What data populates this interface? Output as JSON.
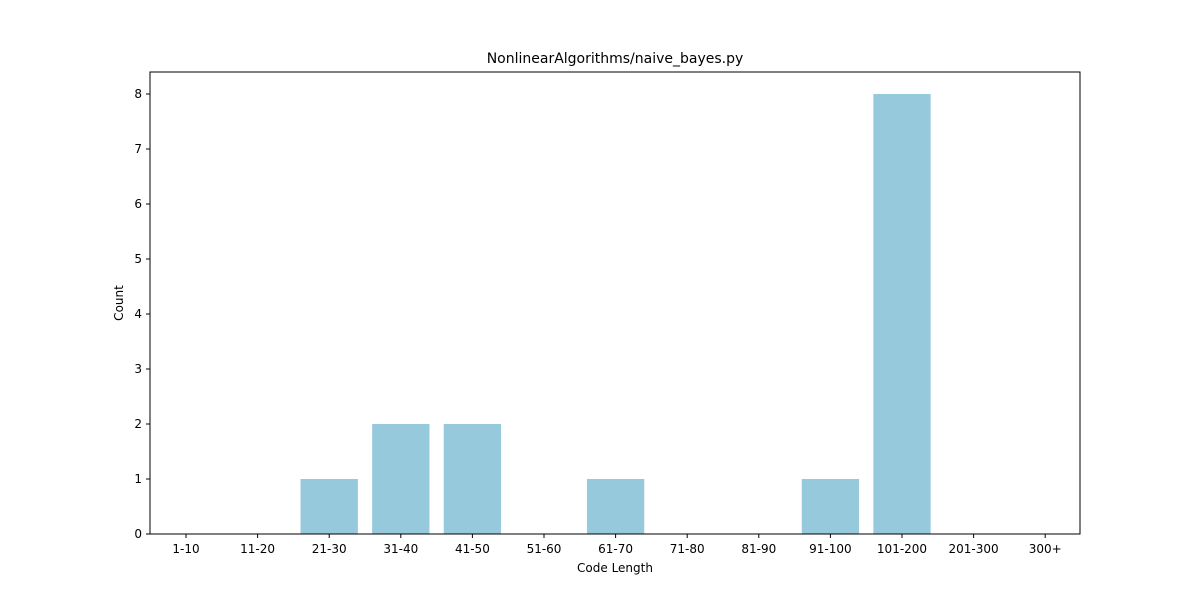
{
  "chart_data": {
    "type": "bar",
    "title": "NonlinearAlgorithms/naive_bayes.py",
    "xlabel": "Code Length",
    "ylabel": "Count",
    "categories": [
      "1-10",
      "11-20",
      "21-30",
      "31-40",
      "41-50",
      "51-60",
      "61-70",
      "71-80",
      "81-90",
      "91-100",
      "101-200",
      "201-300",
      "300+"
    ],
    "values": [
      0,
      0,
      1,
      2,
      2,
      0,
      1,
      0,
      0,
      1,
      8,
      0,
      0
    ],
    "ylim": [
      0,
      8.4
    ],
    "yticks": [
      0,
      1,
      2,
      3,
      4,
      5,
      6,
      7,
      8
    ],
    "bar_color": "#96c9dc",
    "grid": false
  }
}
